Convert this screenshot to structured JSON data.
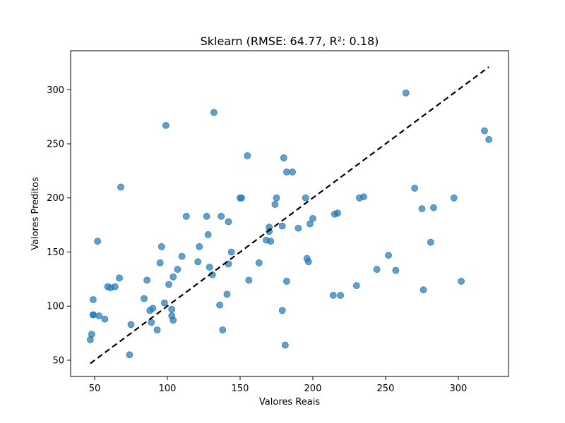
{
  "chart_data": {
    "type": "scatter",
    "title": "Sklearn (RMSE: 64.77, R²: 0.18)",
    "xlabel": "Valores Reais",
    "ylabel": "Valores Preditos",
    "xlim": [
      33.5,
      334.5
    ],
    "ylim": [
      35,
      336
    ],
    "xticks": [
      50,
      100,
      150,
      200,
      250,
      300
    ],
    "yticks": [
      50,
      100,
      150,
      200,
      250,
      300
    ],
    "grid": false,
    "point_color": "#1f77b4",
    "reference_line": {
      "style": "dashed",
      "color": "#000000",
      "x": [
        47,
        321
      ],
      "y": [
        47,
        321
      ]
    },
    "x": [
      47,
      48,
      49,
      49,
      49,
      52,
      53,
      57,
      59,
      61,
      64,
      67,
      68,
      74,
      75,
      84,
      86,
      88,
      89,
      90,
      93,
      95,
      96,
      98,
      99,
      101,
      103,
      103,
      104,
      104,
      107,
      110,
      113,
      121,
      122,
      127,
      128,
      129,
      131,
      132,
      136,
      137,
      138,
      141,
      142,
      142,
      144,
      150,
      151,
      155,
      156,
      163,
      168,
      170,
      170,
      171,
      174,
      175,
      179,
      179,
      180,
      181,
      182,
      182,
      186,
      190,
      195,
      196,
      197,
      198,
      200,
      214,
      215,
      217,
      219,
      230,
      232,
      235,
      244,
      252,
      257,
      264,
      270,
      275,
      276,
      281,
      283,
      297,
      302,
      318,
      321
    ],
    "y": [
      69,
      74,
      106,
      92,
      92,
      160,
      91,
      88,
      118,
      117,
      118,
      126,
      210,
      55,
      83,
      107,
      124,
      96,
      85,
      98,
      78,
      140,
      155,
      103,
      267,
      120,
      97,
      91,
      87,
      127,
      134,
      146,
      183,
      141,
      155,
      183,
      166,
      136,
      129,
      279,
      101,
      183,
      78,
      111,
      178,
      139,
      150,
      200,
      200,
      239,
      124,
      140,
      161,
      169,
      173,
      160,
      194,
      200,
      96,
      174,
      237,
      64,
      224,
      123,
      224,
      172,
      200,
      144,
      141,
      176,
      181,
      110,
      185,
      186,
      110,
      119,
      200,
      201,
      134,
      147,
      133,
      297,
      209,
      190,
      115,
      159,
      191,
      200,
      123,
      262,
      254
    ]
  }
}
